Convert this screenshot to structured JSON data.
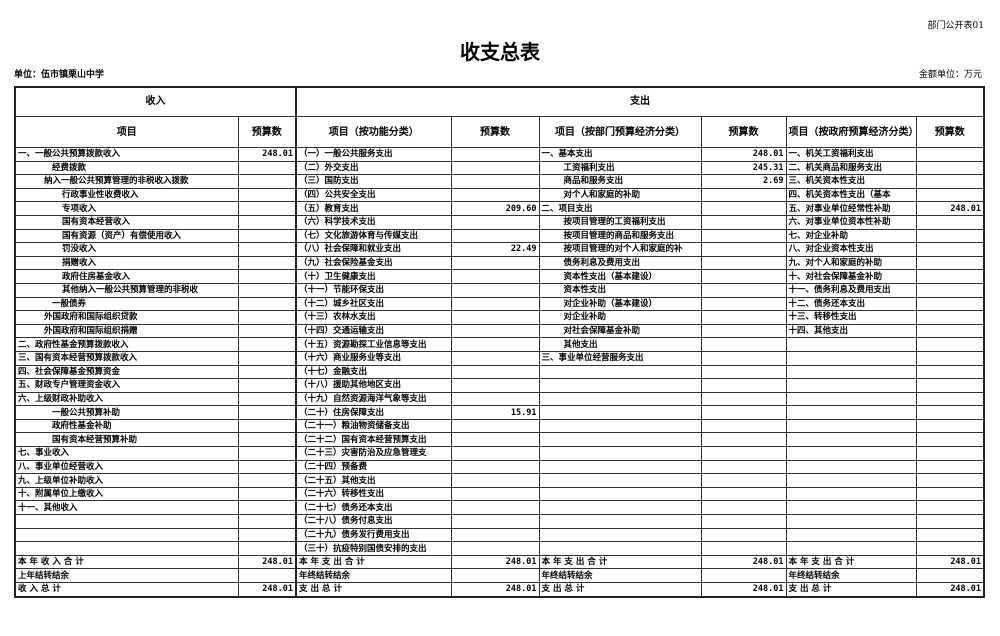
{
  "form_no": "部门公开表01",
  "title": "收支总表",
  "unit": "单位：伍市镇栗山中学",
  "money_unit": "金额单位：万元",
  "header": {
    "income": "收入",
    "expense": "支出",
    "cols": [
      "项目",
      "预算数",
      "项目（按功能分类）",
      "预算数",
      "项目（按部门预算经济分类）",
      "预算数",
      "项目（按政府预算经济分类）",
      "预算数"
    ]
  },
  "rows": [
    {
      "in": "一、一般公共预算拨款收入",
      "il": 0,
      "ia": "248.01",
      "fn": "（一）一般公共服务支出",
      "fa": "",
      "dp": "一、基本支出",
      "dl": 0,
      "da": "248.01",
      "gv": "一、机关工资福利支出",
      "ga": ""
    },
    {
      "in": "经费拨款",
      "il": 2,
      "ia": "",
      "fn": "（二）外交支出",
      "fa": "",
      "dp": "工资福利支出",
      "dl": 1,
      "da": "245.31",
      "gv": "二、机关商品和服务支出",
      "ga": ""
    },
    {
      "in": "纳入一般公共预算管理的非税收入拨款",
      "il": 1,
      "ia": "",
      "fn": "（三）国防支出",
      "fa": "",
      "dp": "商品和服务支出",
      "dl": 1,
      "da": "2.69",
      "gv": "三、机关资本性支出",
      "ga": ""
    },
    {
      "in": "行政事业性收费收入",
      "il": 3,
      "ia": "",
      "fn": "（四）公共安全支出",
      "fa": "",
      "dp": "对个人和家庭的补助",
      "dl": 1,
      "da": "",
      "gv": "四、机关资本性支出（基本",
      "ga": ""
    },
    {
      "in": "专项收入",
      "il": 3,
      "ia": "",
      "fn": "（五）教育支出",
      "fa": "209.60",
      "dp": "二、项目支出",
      "dl": 0,
      "da": "",
      "gv": "五、对事业单位经常性补助",
      "ga": "248.01"
    },
    {
      "in": "国有资本经营收入",
      "il": 3,
      "ia": "",
      "fn": "（六）科学技术支出",
      "fa": "",
      "dp": "按项目管理的工资福利支出",
      "dl": 1,
      "da": "",
      "gv": "六、对事业单位资本性补助",
      "ga": ""
    },
    {
      "in": "国有资源（资产）有偿使用收入",
      "il": 3,
      "ia": "",
      "fn": "（七）文化旅游体育与传媒支出",
      "fa": "",
      "dp": "按项目管理的商品和服务支出",
      "dl": 1,
      "da": "",
      "gv": "七、对企业补助",
      "ga": ""
    },
    {
      "in": "罚没收入",
      "il": 3,
      "ia": "",
      "fn": "（八）社会保障和就业支出",
      "fa": "22.49",
      "dp": "按项目管理的对个人和家庭的补",
      "dl": 1,
      "da": "",
      "gv": "八、对企业资本性支出",
      "ga": ""
    },
    {
      "in": "捐赠收入",
      "il": 3,
      "ia": "",
      "fn": "（九）社会保险基金支出",
      "fa": "",
      "dp": "债务利息及费用支出",
      "dl": 1,
      "da": "",
      "gv": "九、对个人和家庭的补助",
      "ga": ""
    },
    {
      "in": "政府住房基金收入",
      "il": 3,
      "ia": "",
      "fn": "（十）卫生健康支出",
      "fa": "",
      "dp": "资本性支出（基本建设）",
      "dl": 1,
      "da": "",
      "gv": "十、对社会保障基金补助",
      "ga": ""
    },
    {
      "in": "其他纳入一般公共预算管理的非税收",
      "il": 3,
      "ia": "",
      "fn": "（十一）节能环保支出",
      "fa": "",
      "dp": "资本性支出",
      "dl": 1,
      "da": "",
      "gv": "十一、债务利息及费用支出",
      "ga": ""
    },
    {
      "in": "一般债券",
      "il": 2,
      "ia": "",
      "fn": "（十二）城乡社区支出",
      "fa": "",
      "dp": "对企业补助（基本建设）",
      "dl": 1,
      "da": "",
      "gv": "十二、债务还本支出",
      "ga": ""
    },
    {
      "in": "外国政府和国际组织贷款",
      "il": 1,
      "ia": "",
      "fn": "（十三）农林水支出",
      "fa": "",
      "dp": "对企业补助",
      "dl": 1,
      "da": "",
      "gv": "十三、转移性支出",
      "ga": ""
    },
    {
      "in": "外国政府和国际组织捐赠",
      "il": 1,
      "ia": "",
      "fn": "（十四）交通运输支出",
      "fa": "",
      "dp": "对社会保障基金补助",
      "dl": 1,
      "da": "",
      "gv": "十四、其他支出",
      "ga": ""
    },
    {
      "in": "二、政府性基金预算拨款收入",
      "il": 0,
      "ia": "",
      "fn": "（十五）资源勘探工业信息等支出",
      "fa": "",
      "dp": "其他支出",
      "dl": 1,
      "da": "",
      "gv": "",
      "ga": ""
    },
    {
      "in": "三、国有资本经营预算拨款收入",
      "il": 0,
      "ia": "",
      "fn": "（十六）商业服务业等支出",
      "fa": "",
      "dp": "三、事业单位经营服务支出",
      "dl": 0,
      "da": "",
      "gv": "",
      "ga": ""
    },
    {
      "in": "四、社会保障基金预算资金",
      "il": 0,
      "ia": "",
      "fn": "（十七）金融支出",
      "fa": "",
      "dp": "",
      "dl": 0,
      "da": "",
      "gv": "",
      "ga": ""
    },
    {
      "in": "五、财政专户管理资金收入",
      "il": 0,
      "ia": "",
      "fn": "（十八）援助其他地区支出",
      "fa": "",
      "dp": "",
      "dl": 0,
      "da": "",
      "gv": "",
      "ga": ""
    },
    {
      "in": "六、上级财政补助收入",
      "il": 0,
      "ia": "",
      "fn": "（十九）自然资源海洋气象等支出",
      "fa": "",
      "dp": "",
      "dl": 0,
      "da": "",
      "gv": "",
      "ga": ""
    },
    {
      "in": "一般公共预算补助",
      "il": 2,
      "ia": "",
      "fn": "（二十）住房保障支出",
      "fa": "15.91",
      "dp": "",
      "dl": 0,
      "da": "",
      "gv": "",
      "ga": ""
    },
    {
      "in": "政府性基金补助",
      "il": 2,
      "ia": "",
      "fn": "（二十一）粮油物资储备支出",
      "fa": "",
      "dp": "",
      "dl": 0,
      "da": "",
      "gv": "",
      "ga": ""
    },
    {
      "in": "国有资本经营预算补助",
      "il": 2,
      "ia": "",
      "fn": "（二十二）国有资本经营预算支出",
      "fa": "",
      "dp": "",
      "dl": 0,
      "da": "",
      "gv": "",
      "ga": ""
    },
    {
      "in": "七、事业收入",
      "il": 0,
      "ia": "",
      "fn": "（二十三）灾害防治及应急管理支",
      "fa": "",
      "dp": "",
      "dl": 0,
      "da": "",
      "gv": "",
      "ga": ""
    },
    {
      "in": "八、事业单位经营收入",
      "il": 0,
      "ia": "",
      "fn": "（二十四）预备费",
      "fa": "",
      "dp": "",
      "dl": 0,
      "da": "",
      "gv": "",
      "ga": ""
    },
    {
      "in": "九、上级单位补助收入",
      "il": 0,
      "ia": "",
      "fn": "（二十五）其他支出",
      "fa": "",
      "dp": "",
      "dl": 0,
      "da": "",
      "gv": "",
      "ga": ""
    },
    {
      "in": "十、附属单位上缴收入",
      "il": 0,
      "ia": "",
      "fn": "（二十六）转移性支出",
      "fa": "",
      "dp": "",
      "dl": 0,
      "da": "",
      "gv": "",
      "ga": ""
    },
    {
      "in": "十一、其他收入",
      "il": 0,
      "ia": "",
      "fn": "（二十七）债务还本支出",
      "fa": "",
      "dp": "",
      "dl": 0,
      "da": "",
      "gv": "",
      "ga": ""
    },
    {
      "in": "",
      "il": 0,
      "ia": "",
      "fn": "（二十八）债务付息支出",
      "fa": "",
      "dp": "",
      "dl": 0,
      "da": "",
      "gv": "",
      "ga": ""
    },
    {
      "in": "",
      "il": 0,
      "ia": "",
      "fn": "（二十九）债务发行费用支出",
      "fa": "",
      "dp": "",
      "dl": 0,
      "da": "",
      "gv": "",
      "ga": ""
    },
    {
      "in": "",
      "il": 0,
      "ia": "",
      "fn": "（三十）抗疫特别国债安排的支出",
      "fa": "",
      "dp": "",
      "dl": 0,
      "da": "",
      "gv": "",
      "ga": ""
    }
  ],
  "totals": [
    {
      "in": "本 年 收 入 合 计",
      "ia": "248.01",
      "fn": "本  年  支  出  合  计",
      "fa": "248.01",
      "dp": "本  年  支  出  合  计",
      "da": "248.01",
      "gv": "本  年  支  出  合  计",
      "ga": "248.01"
    },
    {
      "in": "上年结转结余",
      "ia": "",
      "fn": "年终结转结余",
      "fa": "",
      "dp": "年终结转结余",
      "da": "",
      "gv": "年终结转结余",
      "ga": ""
    },
    {
      "in": "收  入  总  计",
      "ia": "248.01",
      "fn": "支  出  总  计",
      "fa": "248.01",
      "dp": "支  出  总  计",
      "da": "248.01",
      "gv": "支  出  总  计",
      "ga": "248.01"
    }
  ]
}
